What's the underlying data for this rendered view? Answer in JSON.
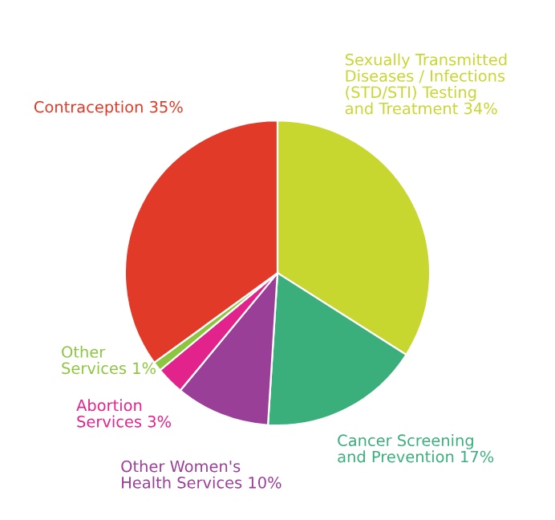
{
  "chart_data": {
    "type": "pie",
    "categories": [
      "Sexually Transmitted\nDiseases / Infections\n(STD/STI) Testing\nand Treatment 34%",
      "Cancer Screening\nand Prevention 17%",
      "Other Women's\nHealth Services 10%",
      "Abortion\nServices 3%",
      "Other\nServices 1%",
      "Contraception 35%"
    ],
    "values": [
      34,
      17,
      10,
      3,
      1,
      35
    ],
    "colors": [
      "#c8d630",
      "#3aaf7c",
      "#9a3f97",
      "#e2238c",
      "#8cc63f",
      "#e13a28"
    ]
  }
}
